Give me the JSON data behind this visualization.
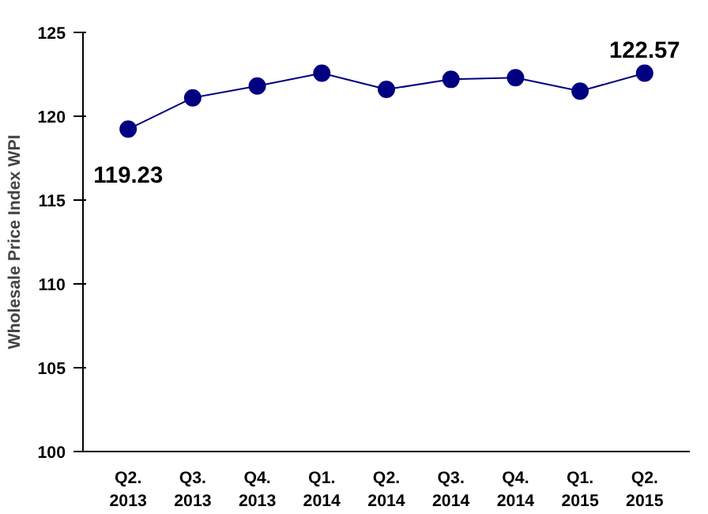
{
  "chart_data": {
    "type": "line",
    "ylabel": "Wholesale Price Index WPI",
    "categories": [
      "Q2.\n2013",
      "Q3.\n2013",
      "Q4.\n2013",
      "Q1.\n2014",
      "Q2.\n2014",
      "Q3.\n2014",
      "Q4.\n2014",
      "Q1.\n2015",
      "Q2.\n2015"
    ],
    "series": [
      {
        "color": "#000080",
        "values": [
          119.23,
          121.1,
          121.8,
          122.57,
          121.6,
          122.2,
          122.3,
          121.5,
          122.57
        ],
        "value_labels": [
          "119.23",
          null,
          null,
          null,
          null,
          null,
          null,
          null,
          "122.57"
        ]
      }
    ],
    "ylim": [
      100,
      125
    ],
    "yticks": [
      100,
      105,
      110,
      115,
      120,
      125
    ],
    "grid": false,
    "marker": "circle",
    "line_style": "solid"
  }
}
